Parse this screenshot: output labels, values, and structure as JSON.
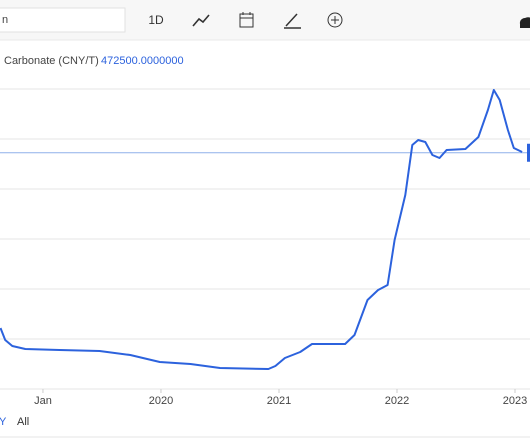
{
  "toolbar": {
    "search_text": "n",
    "interval": "1D"
  },
  "range_buttons": [
    "Y",
    "All"
  ],
  "chart_data": {
    "type": "line",
    "series": [
      {
        "name": "Carbonate (CNY/T)",
        "color": "#2c62dd",
        "x": [
          2018.64,
          2018.68,
          2018.74,
          2018.85,
          2019.14,
          2019.48,
          2019.74,
          2019.99,
          2020.25,
          2020.5,
          2020.91,
          2020.97,
          2021.05,
          2021.18,
          2021.28,
          2021.56,
          2021.64,
          2021.75,
          2021.84,
          2021.92,
          2021.98,
          2022.07,
          2022.13,
          2022.18,
          2022.24,
          2022.3,
          2022.36,
          2022.42,
          2022.58,
          2022.69,
          2022.77,
          2022.82,
          2022.87,
          2022.94,
          2022.99,
          2023.06
        ],
        "values": [
          122000,
          98000,
          86000,
          80000,
          78000,
          76000,
          68000,
          54000,
          50000,
          42000,
          40000,
          46000,
          62000,
          74000,
          90000,
          90000,
          108000,
          178000,
          198000,
          208000,
          298000,
          388000,
          488000,
          498000,
          494000,
          468000,
          462000,
          478000,
          480000,
          504000,
          558000,
          598000,
          578000,
          518000,
          482000,
          474000
        ]
      }
    ],
    "current": {
      "value": 472500,
      "label": "472500.0000000",
      "color": "#8fb0ea"
    },
    "xlim": [
      2018.636,
      2023.127
    ],
    "xticks": [
      {
        "value": 2019,
        "label": "Jan"
      },
      {
        "value": 2020,
        "label": "2020"
      },
      {
        "value": 2021,
        "label": "2021"
      },
      {
        "value": 2022,
        "label": "2022"
      },
      {
        "value": 2023,
        "label": "2023"
      }
    ],
    "ylim": [
      0,
      700000
    ],
    "yticks": [
      100000,
      200000,
      300000,
      400000,
      500000,
      600000
    ],
    "grid": true
  }
}
